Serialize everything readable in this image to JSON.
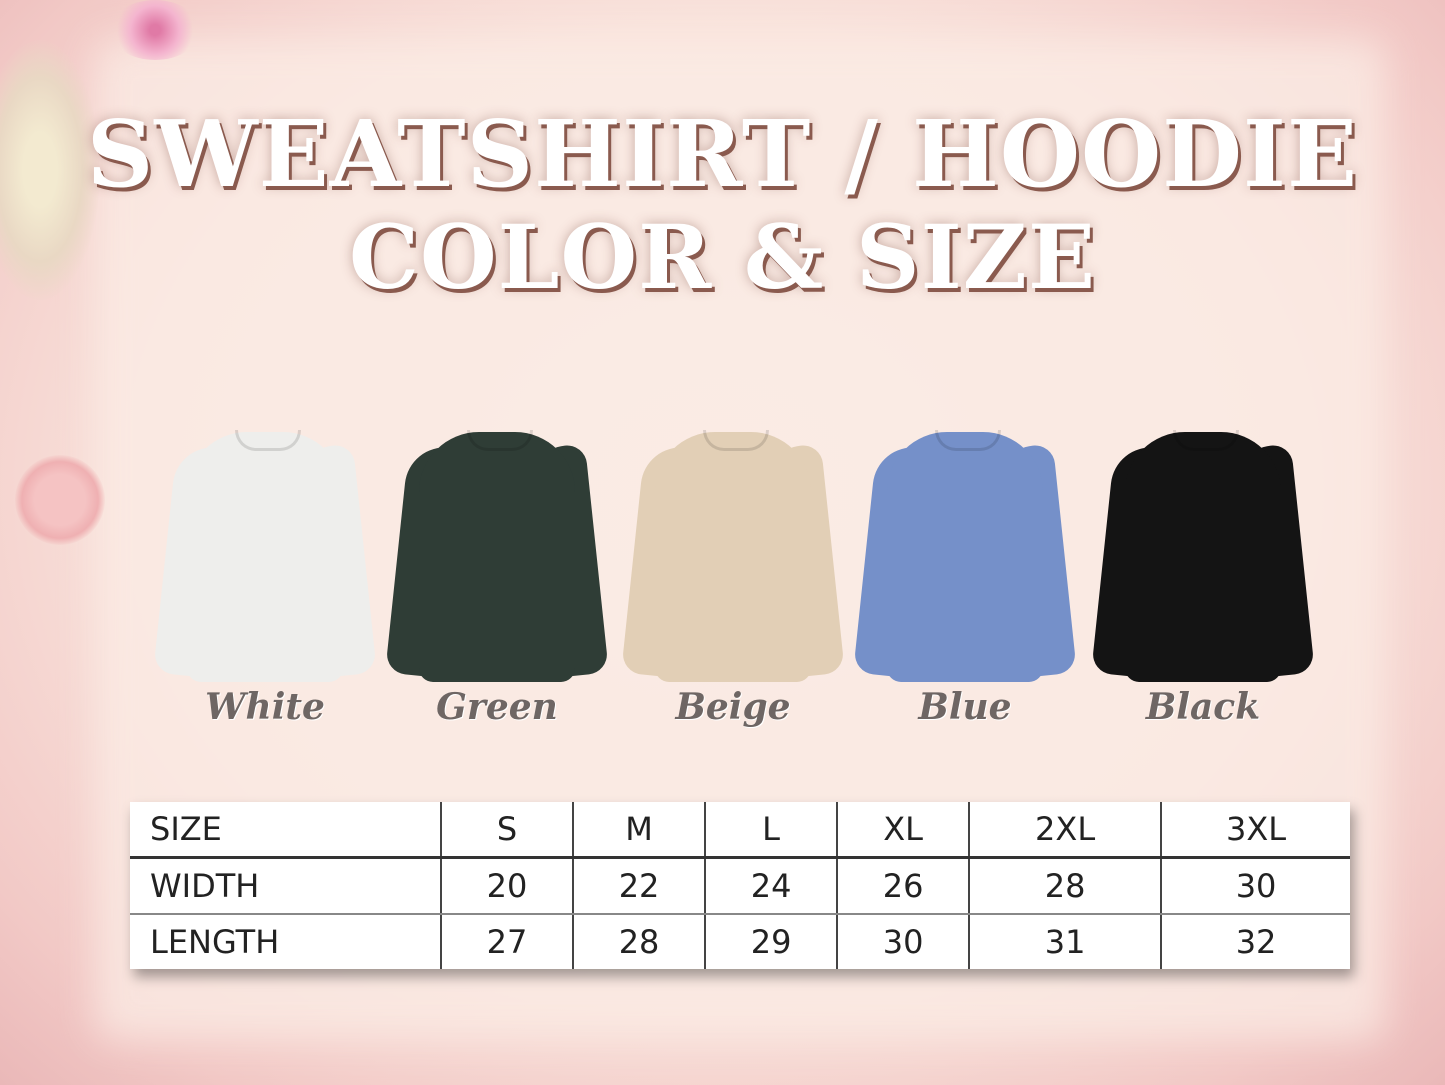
{
  "title": {
    "line1": "SWEATSHIRT / HOODIE",
    "line2": "COLOR & SIZE"
  },
  "colors": [
    {
      "label": "White",
      "hex": "#eeeeec"
    },
    {
      "label": "Green",
      "hex": "#2f3d36"
    },
    {
      "label": "Beige",
      "hex": "#e2cfb6"
    },
    {
      "label": "Blue",
      "hex": "#7590c9"
    },
    {
      "label": "Black",
      "hex": "#141414"
    }
  ],
  "size_table": {
    "headers": [
      "SIZE",
      "S",
      "M",
      "L",
      "XL",
      "2XL",
      "3XL"
    ],
    "rows": [
      [
        "WIDTH",
        "20",
        "22",
        "24",
        "26",
        "28",
        "30"
      ],
      [
        "LENGTH",
        "27",
        "28",
        "29",
        "30",
        "31",
        "32"
      ]
    ]
  }
}
